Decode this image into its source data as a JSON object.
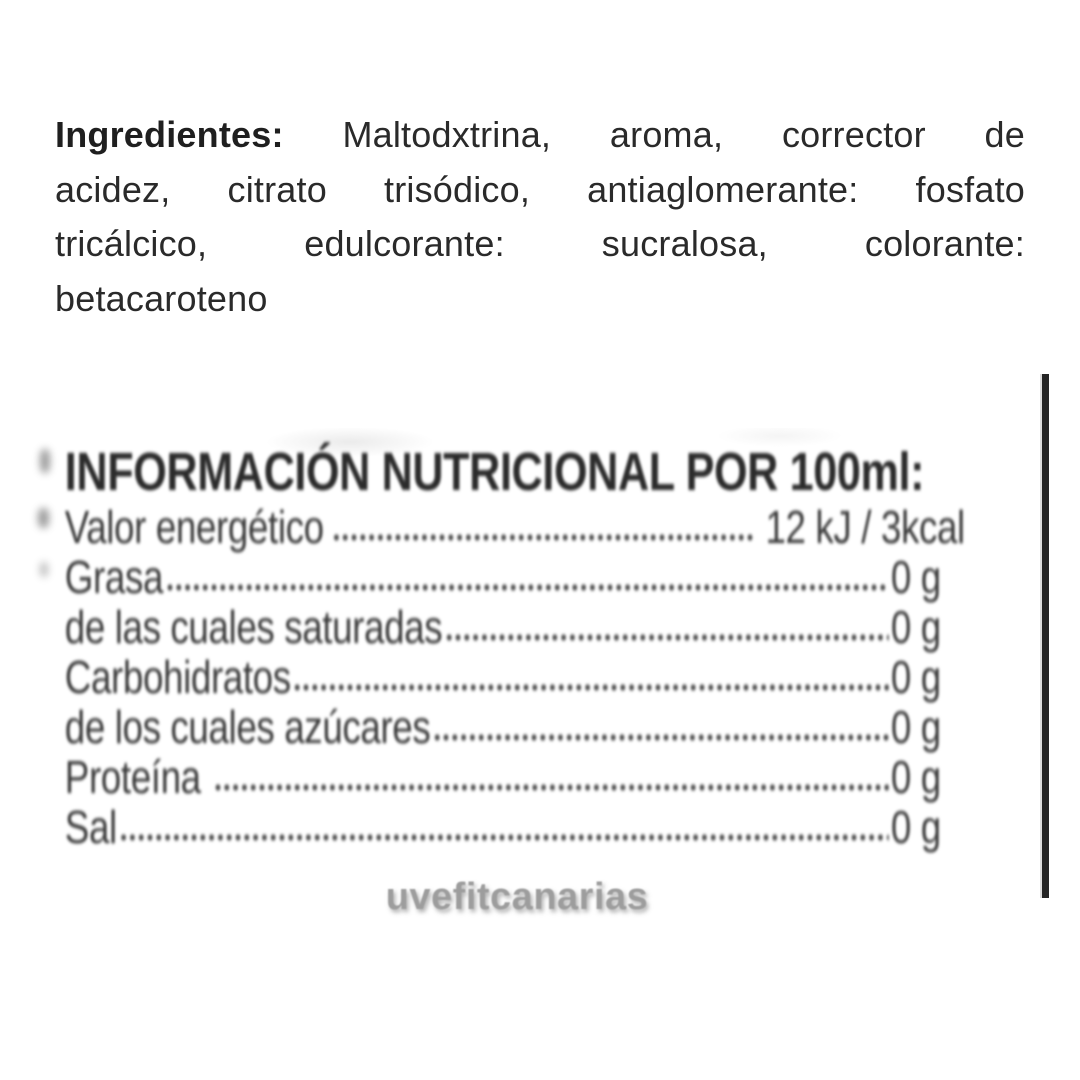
{
  "ingredients": {
    "label": "Ingredientes:",
    "lines": [
      "Maltodxtrina, aroma, corrector de",
      "acidez, citrato trisódico, antiaglomerante: fosfato",
      "tricálcico, edulcorante: sucralosa, colorante:",
      "betacaroteno"
    ]
  },
  "nutrition": {
    "title": "INFORMACIÓN NUTRICIONAL POR 100ml:",
    "rows": [
      {
        "label": "Valor energético",
        "value": "12 kJ / 3kcal"
      },
      {
        "label": "Grasa",
        "value": "0 g"
      },
      {
        "label": "de las cuales saturadas",
        "value": "0 g"
      },
      {
        "label": "Carbohidratos",
        "value": "0 g"
      },
      {
        "label": "de los cuales azúcares",
        "value": "0 g"
      },
      {
        "label": "Proteína",
        "value": "0 g"
      },
      {
        "label": "Sal",
        "value": "0 g"
      }
    ]
  },
  "watermark": {
    "text": "uvefitcanarias"
  },
  "colors": {
    "background": "#ffffff",
    "body_text": "#2a2a2a",
    "label_text": "#3a3a3a",
    "watermark_text": "#9d9d9d",
    "divider": "#242424"
  }
}
